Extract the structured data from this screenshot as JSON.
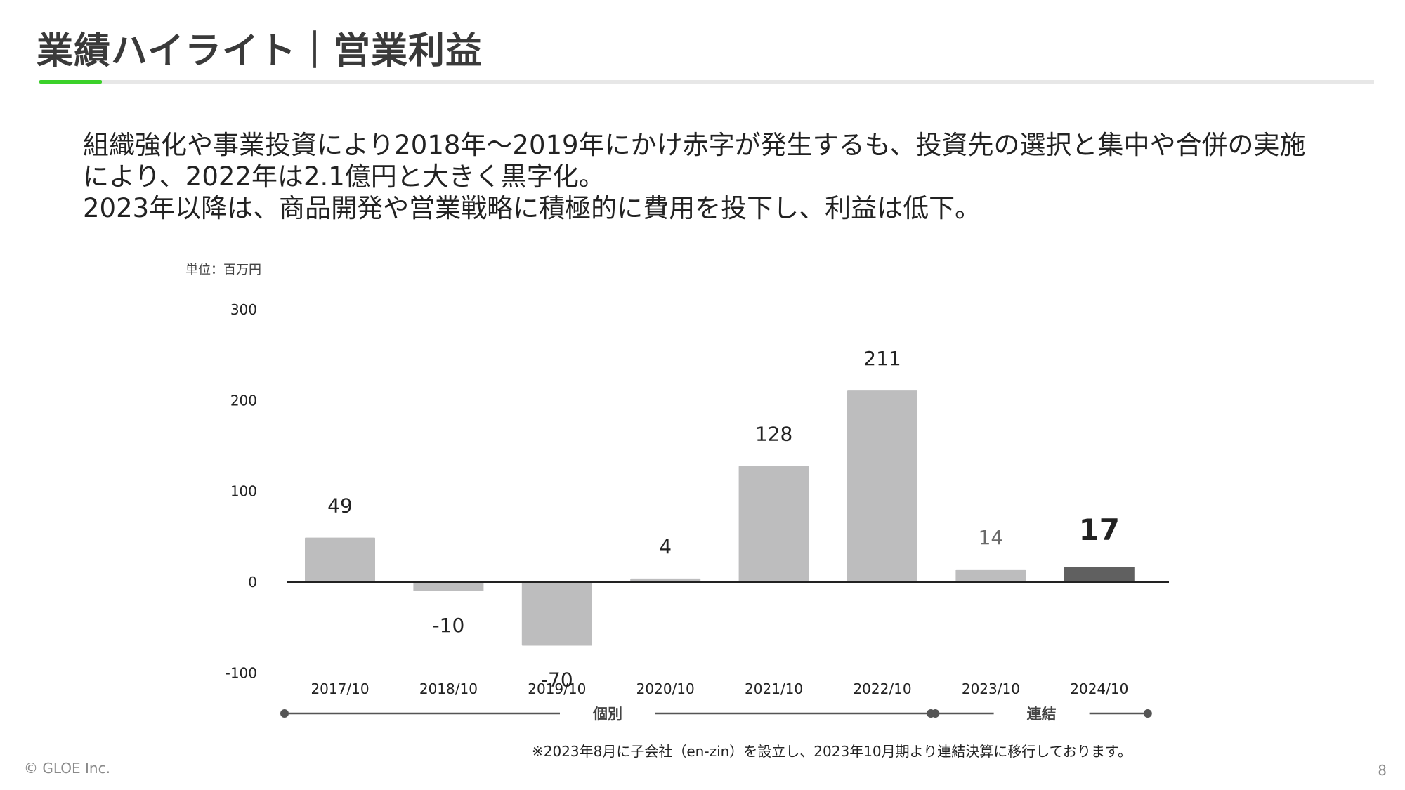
{
  "slide": {
    "title": "業績ハイライト｜営業利益",
    "description": [
      "組織強化や事業投資により2018年～2019年にかけ赤字が発生するも、投資先の選択と集中や合併の実施",
      "により、2022年は2.1億円と大きく黒字化。",
      "2023年以降は、商品開発や営業戦略に積極的に費用を投下し、利益は低下。"
    ],
    "unit_label": "単位：百万円",
    "footnote": "※2023年8月に子会社（en-zin）を設立し、2023年10月期より連結決算に移行しております。",
    "copyright": "© GLOE Inc.",
    "page_number": "8",
    "accent_color": "#3bd12a"
  },
  "chart_data": {
    "type": "bar",
    "categories": [
      "2017/10",
      "2018/10",
      "2019/10",
      "2020/10",
      "2021/10",
      "2022/10",
      "2023/10",
      "2024/10"
    ],
    "values": [
      49,
      -10,
      -70,
      4,
      128,
      211,
      14,
      17
    ],
    "value_labels": [
      "49",
      "-10",
      "-70",
      "4",
      "128",
      "211",
      "14",
      "17"
    ],
    "highlight_index": 7,
    "ylim": [
      -100,
      300
    ],
    "yticks": [
      -100,
      0,
      100,
      200,
      300
    ],
    "ytick_labels": [
      "-100",
      "0",
      "100",
      "200",
      "300"
    ],
    "colors": {
      "bar": "#bdbdbe",
      "highlight": "#606060"
    },
    "groups": [
      {
        "label": "個別",
        "from": 0,
        "to": 5
      },
      {
        "label": "連結",
        "from": 6,
        "to": 7
      }
    ]
  }
}
